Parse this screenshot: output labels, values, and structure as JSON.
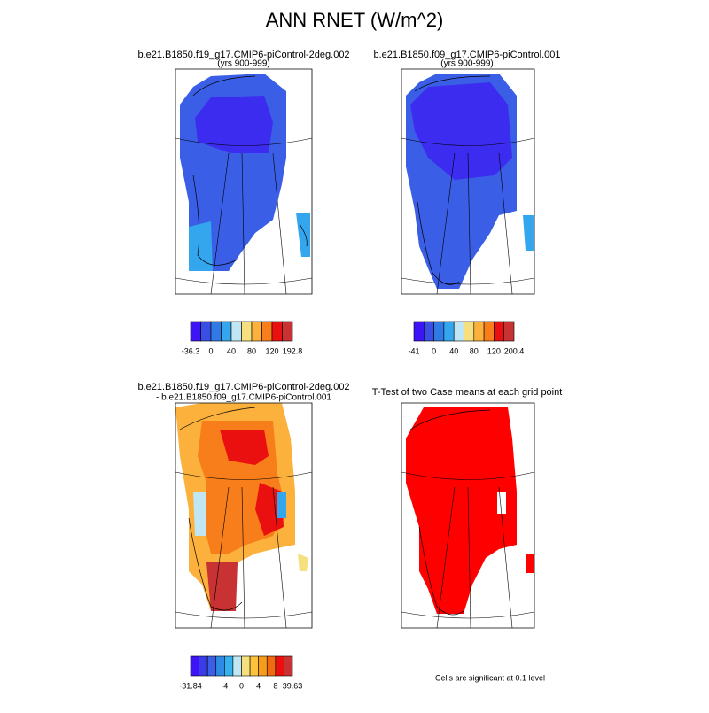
{
  "title": "ANN RNET (W/m^2)",
  "panels": [
    {
      "title_lines": [
        "b.e21.B1850.f19_g17.CMIP6-piControl-2deg.002",
        "(yrs 900-999)"
      ],
      "colorbar_labels": [
        "-36.3",
        "0",
        "40",
        "80",
        "120",
        "192.8"
      ]
    },
    {
      "title_lines": [
        "b.e21.B1850.f09_g17.CMIP6-piControl.001",
        "(yrs 900-999)"
      ],
      "colorbar_labels": [
        "-41",
        "0",
        "40",
        "80",
        "120",
        "200.4"
      ]
    },
    {
      "title_lines": [
        "b.e21.B1850.f19_g17.CMIP6-piControl-2deg.002",
        "- b.e21.B1850.f09_g17.CMIP6-piControl.001"
      ],
      "colorbar_labels": [
        "-31.84",
        "-4",
        "0",
        "4",
        "8",
        "39.63"
      ]
    },
    {
      "title_lines": [
        "T-Test of two Case means at each grid point"
      ]
    }
  ],
  "footnote": "Cells are significant at 0.1 level"
}
